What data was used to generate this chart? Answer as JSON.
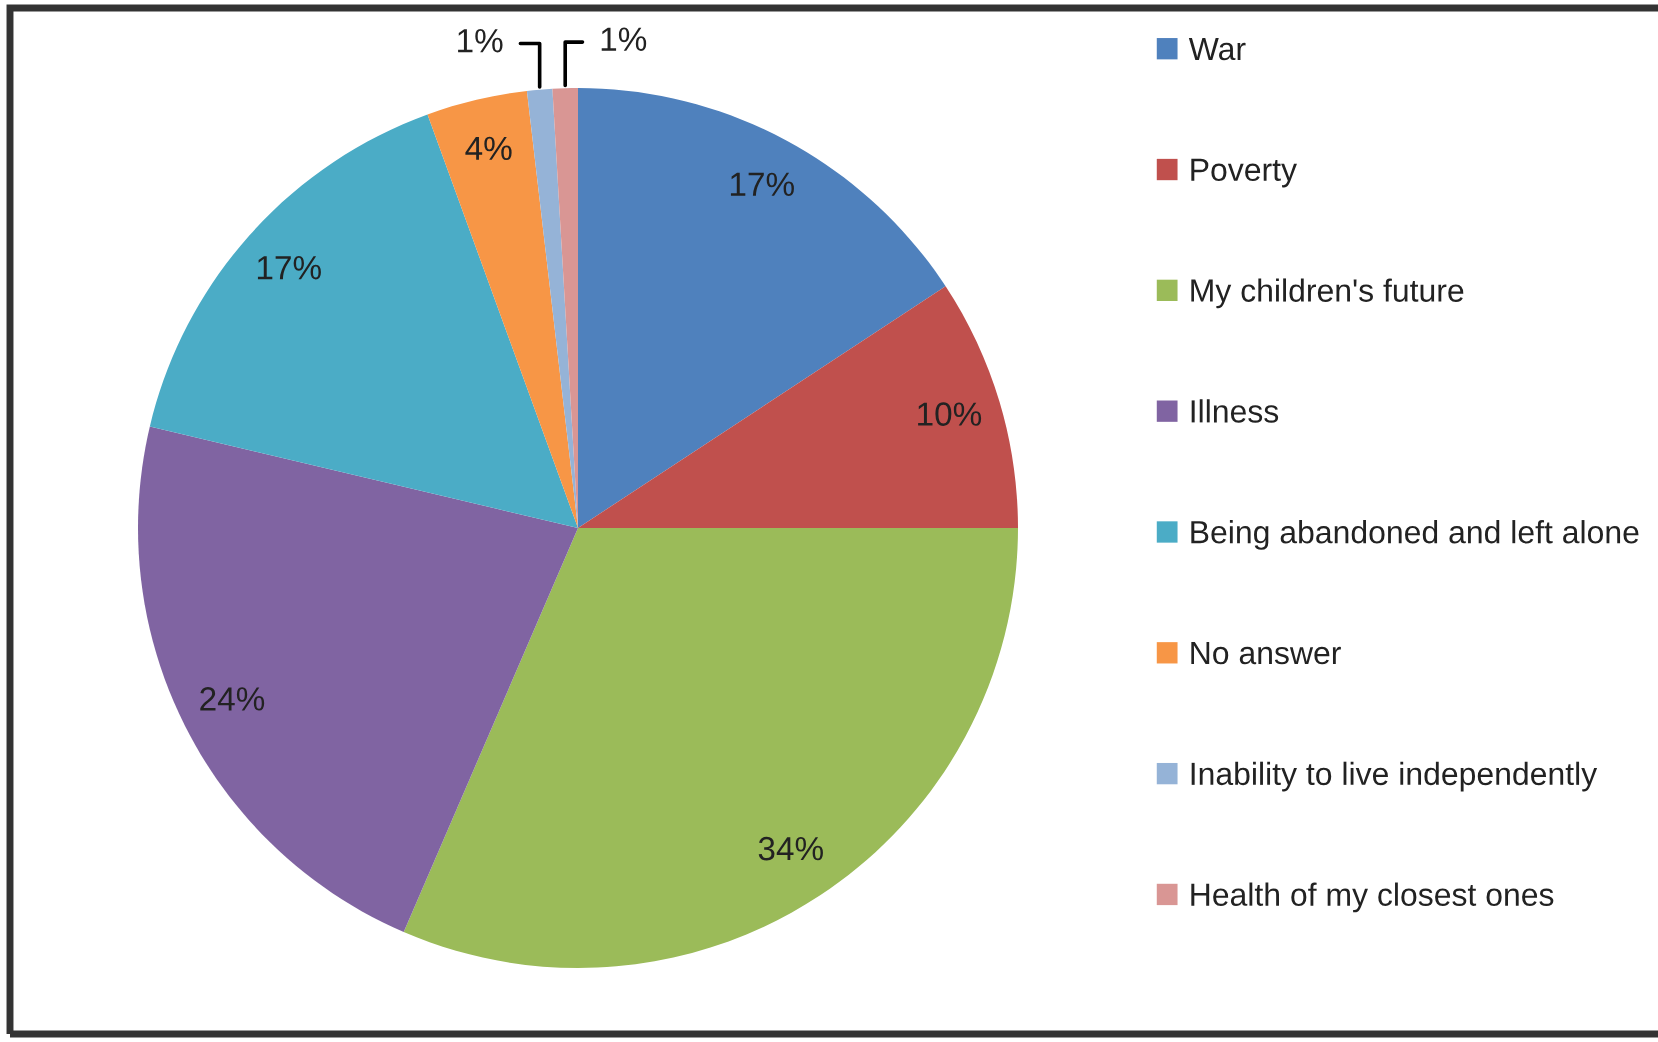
{
  "chart_data": {
    "type": "pie",
    "categories": [
      "War",
      "Poverty",
      "My children's future",
      "Illness",
      "Being abandoned and left alone",
      "No answer",
      "Inability to live independently",
      "Health of my closest ones"
    ],
    "values": [
      17,
      10,
      34,
      24,
      17,
      4,
      1,
      1
    ],
    "colors": [
      "#4f81bd",
      "#c0504d",
      "#9bbb59",
      "#8064a2",
      "#4bacc6",
      "#f79646",
      "#95b3d7",
      "#d99694"
    ],
    "value_labels": [
      "17%",
      "10%",
      "34%",
      "24%",
      "17%",
      "4%",
      "1%",
      "1%"
    ],
    "legend": "right"
  }
}
